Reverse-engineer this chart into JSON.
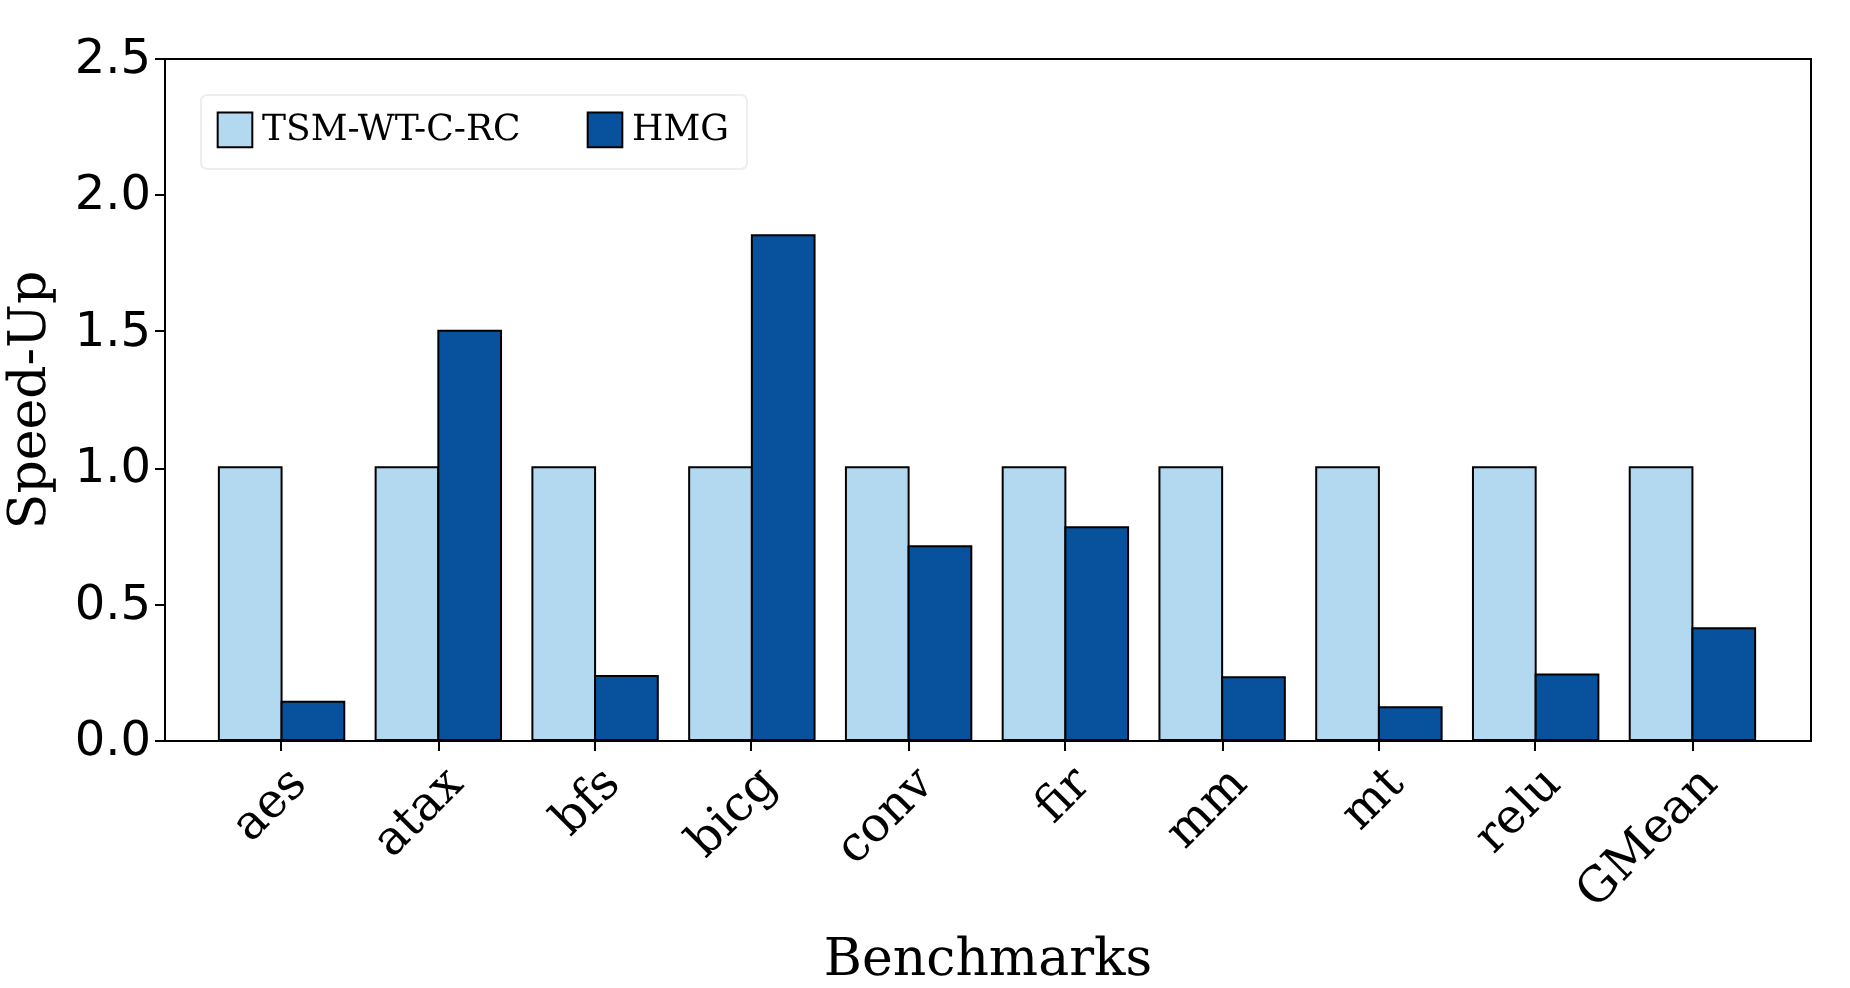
{
  "chart_data": {
    "type": "bar",
    "xlabel": "Benchmarks",
    "ylabel": "Speed-Up",
    "categories": [
      "aes",
      "atax",
      "bfs",
      "bicg",
      "conv",
      "fir",
      "mm",
      "mt",
      "relu",
      "GMean"
    ],
    "series": [
      {
        "name": "TSM-WT-C-RC",
        "color": "#b3d9f0",
        "values": [
          1,
          1,
          1,
          1,
          1,
          1,
          1,
          1,
          1,
          1
        ]
      },
      {
        "name": "HMG",
        "color": "#08519c",
        "values": [
          0.14,
          1.5,
          0.235,
          1.85,
          0.71,
          0.78,
          0.23,
          0.12,
          0.24,
          0.41
        ]
      }
    ],
    "ylim": [
      0,
      2.5
    ],
    "yticks": [
      {
        "value": 0,
        "label": "0.0"
      },
      {
        "value": 0.5,
        "label": "0.5"
      },
      {
        "value": 1,
        "label": "1.0"
      },
      {
        "value": 1.5,
        "label": "1.5"
      },
      {
        "value": 2,
        "label": "2.0"
      },
      {
        "value": 2.5,
        "label": "2.5"
      }
    ],
    "grid": false,
    "legend": "top left"
  }
}
